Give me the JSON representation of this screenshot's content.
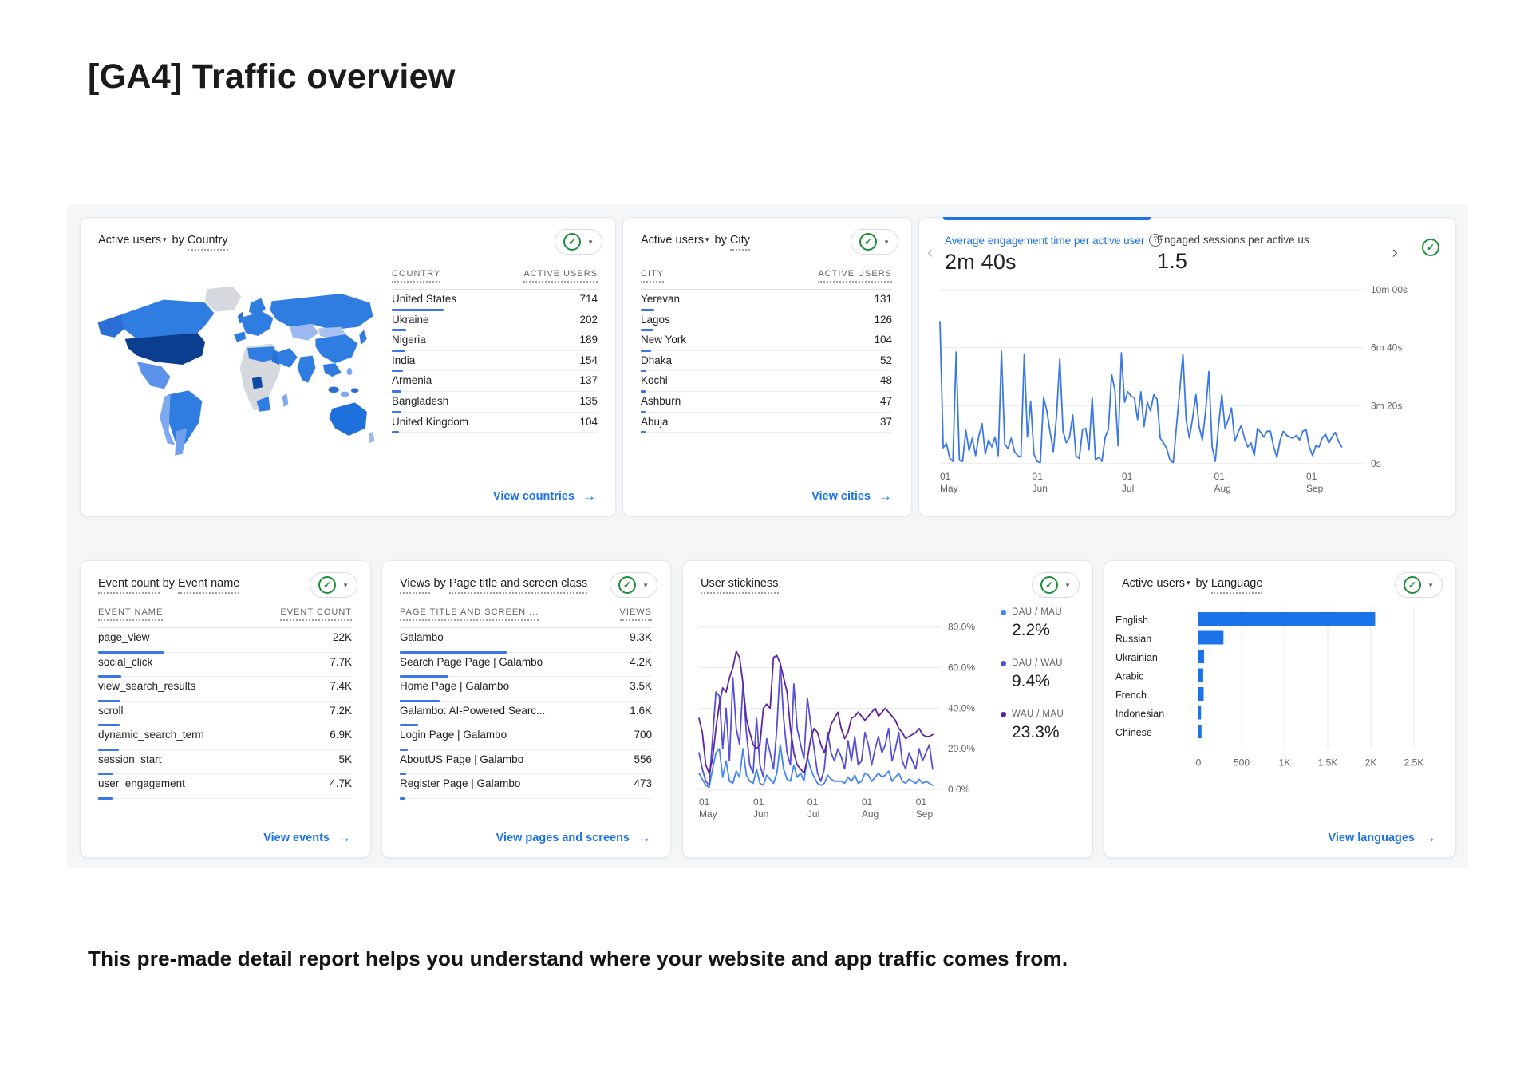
{
  "page": {
    "title": "[GA4] Traffic overview",
    "footer": "This pre-made detail report helps you understand where your website and app traffic comes from."
  },
  "icons": {
    "data_quality": "✓",
    "dropdown_caret": "▼",
    "metric_caret": "▾",
    "help": "?",
    "chevron_left": "‹",
    "chevron_right": "›",
    "arrow_right": "→"
  },
  "theme": {
    "accent_blue": "#1a73e8",
    "link_blue": "#1a73e8",
    "check_green": "#1e8e3e",
    "text_dark": "#202124",
    "text_gray": "#5f6368",
    "map_dark": "#0b3e8f",
    "map_mid": "#2f7de1",
    "map_light": "#8ab0ef",
    "map_gray": "#d5d9dd"
  },
  "cards": {
    "country": {
      "metric": "Active users",
      "joiner": "by",
      "dimension": "Country",
      "columns": [
        "COUNTRY",
        "ACTIVE USERS"
      ],
      "rows": [
        {
          "label": "United States",
          "value": "714",
          "num": 714
        },
        {
          "label": "Ukraine",
          "value": "202",
          "num": 202
        },
        {
          "label": "Nigeria",
          "value": "189",
          "num": 189
        },
        {
          "label": "India",
          "value": "154",
          "num": 154
        },
        {
          "label": "Armenia",
          "value": "137",
          "num": 137
        },
        {
          "label": "Bangladesh",
          "value": "135",
          "num": 135
        },
        {
          "label": "United Kingdom",
          "value": "104",
          "num": 104
        }
      ],
      "link": "View countries"
    },
    "city": {
      "metric": "Active users",
      "joiner": "by",
      "dimension": "City",
      "columns": [
        "CITY",
        "ACTIVE USERS"
      ],
      "rows": [
        {
          "label": "Yerevan",
          "value": "131",
          "num": 131
        },
        {
          "label": "Lagos",
          "value": "126",
          "num": 126
        },
        {
          "label": "New York",
          "value": "104",
          "num": 104
        },
        {
          "label": "Dhaka",
          "value": "52",
          "num": 52
        },
        {
          "label": "Kochi",
          "value": "48",
          "num": 48
        },
        {
          "label": "Ashburn",
          "value": "47",
          "num": 47
        },
        {
          "label": "Abuja",
          "value": "37",
          "num": 37
        }
      ],
      "link": "View cities"
    },
    "engagement": {
      "tabs": [
        {
          "label": "Average engagement time per active user",
          "value": "2m 40s"
        },
        {
          "label": "Engaged sessions per active us",
          "value": "1.5"
        }
      ]
    },
    "events": {
      "title_a": "Event count",
      "joiner": "by",
      "title_b": "Event name",
      "columns": [
        "EVENT NAME",
        "EVENT COUNT"
      ],
      "rows": [
        {
          "label": "page_view",
          "value": "22K",
          "num": 22000
        },
        {
          "label": "social_click",
          "value": "7.7K",
          "num": 7700
        },
        {
          "label": "view_search_results",
          "value": "7.4K",
          "num": 7400
        },
        {
          "label": "scroll",
          "value": "7.2K",
          "num": 7200
        },
        {
          "label": "dynamic_search_term",
          "value": "6.9K",
          "num": 6900
        },
        {
          "label": "session_start",
          "value": "5K",
          "num": 5000
        },
        {
          "label": "user_engagement",
          "value": "4.7K",
          "num": 4700
        }
      ],
      "link": "View events"
    },
    "views": {
      "title_a": "Views",
      "joiner": "by",
      "title_b": "Page title and screen class",
      "columns": [
        "PAGE TITLE AND SCREEN ...",
        "VIEWS"
      ],
      "rows": [
        {
          "label": "Galambo",
          "value": "9.3K",
          "num": 9300
        },
        {
          "label": "Search Page Page | Galambo",
          "value": "4.2K",
          "num": 4200
        },
        {
          "label": "Home Page | Galambo",
          "value": "3.5K",
          "num": 3500
        },
        {
          "label": "Galambo: AI-Powered Searc...",
          "value": "1.6K",
          "num": 1600
        },
        {
          "label": "Login Page | Galambo",
          "value": "700",
          "num": 700
        },
        {
          "label": "AboutUS Page | Galambo",
          "value": "556",
          "num": 556
        },
        {
          "label": "Register Page | Galambo",
          "value": "473",
          "num": 473
        }
      ],
      "link": "View pages and screens"
    },
    "stickiness": {
      "title": "User stickiness",
      "legend": [
        {
          "name": "DAU / MAU",
          "value": "2.2%",
          "color": "#4285f4"
        },
        {
          "name": "DAU / WAU",
          "value": "9.4%",
          "color": "#564fd8"
        },
        {
          "name": "WAU / MAU",
          "value": "23.3%",
          "color": "#5f249f"
        }
      ]
    },
    "language": {
      "metric": "Active users",
      "joiner": "by",
      "dimension": "Language",
      "link": "View languages"
    }
  },
  "chart_data": [
    {
      "type": "line",
      "title": "Average engagement time per active user",
      "ylabel": "engagement time",
      "ylim": [
        0,
        600
      ],
      "yticks": [
        {
          "v": 600,
          "label": "10m 00s"
        },
        {
          "v": 400,
          "label": "6m 40s"
        },
        {
          "v": 200,
          "label": "3m 20s"
        },
        {
          "v": 0,
          "label": "0s"
        }
      ],
      "xticks": [
        {
          "f": 0.0,
          "l1": "01",
          "l2": "May"
        },
        {
          "f": 0.218,
          "l1": "01",
          "l2": "Jun"
        },
        {
          "f": 0.43,
          "l1": "01",
          "l2": "Jul"
        },
        {
          "f": 0.648,
          "l1": "01",
          "l2": "Aug"
        },
        {
          "f": 0.866,
          "l1": "01",
          "l2": "Sep"
        }
      ],
      "series": [
        {
          "name": "Average engagement time (seconds)",
          "color": "#3b78e7",
          "values": [
            490,
            55,
            70,
            20,
            8,
            385,
            12,
            8,
            115,
            45,
            88,
            28,
            95,
            138,
            33,
            82,
            58,
            92,
            28,
            388,
            68,
            52,
            88,
            42,
            28,
            22,
            378,
            92,
            215,
            33,
            8,
            4,
            228,
            182,
            108,
            42,
            168,
            362,
            112,
            72,
            92,
            168,
            28,
            18,
            118,
            122,
            48,
            228,
            12,
            22,
            8,
            92,
            118,
            308,
            252,
            62,
            382,
            212,
            248,
            232,
            228,
            152,
            248,
            128,
            212,
            182,
            238,
            222,
            88,
            72,
            52,
            12,
            4,
            128,
            252,
            378,
            148,
            88,
            158,
            238,
            128,
            82,
            182,
            318,
            58,
            8,
            132,
            238,
            122,
            152,
            192,
            78,
            108,
            132,
            88,
            58,
            72,
            28,
            122,
            108,
            92,
            112,
            112,
            58,
            22,
            82,
            112,
            98,
            92,
            88,
            98,
            82,
            112,
            118,
            58,
            28,
            62,
            58,
            88,
            102,
            72,
            92,
            108,
            78,
            58
          ]
        }
      ]
    },
    {
      "type": "line",
      "title": "User stickiness",
      "ylabel": "percent",
      "ylim": [
        0,
        85
      ],
      "yticks": [
        {
          "v": 80,
          "label": "80.0%"
        },
        {
          "v": 60,
          "label": "60.0%"
        },
        {
          "v": 40,
          "label": "40.0%"
        },
        {
          "v": 20,
          "label": "20.0%"
        },
        {
          "v": 0,
          "label": "0.0%"
        }
      ],
      "xticks": [
        {
          "f": 0.0,
          "l1": "01",
          "l2": "May"
        },
        {
          "f": 0.225,
          "l1": "01",
          "l2": "Jun"
        },
        {
          "f": 0.45,
          "l1": "01",
          "l2": "Jul"
        },
        {
          "f": 0.675,
          "l1": "01",
          "l2": "Aug"
        },
        {
          "f": 0.9,
          "l1": "01",
          "l2": "Sep"
        }
      ],
      "series": [
        {
          "name": "DAU / MAU",
          "color": "#4285f4",
          "values": [
            8,
            5,
            2,
            1,
            10,
            18,
            20,
            6,
            14,
            4,
            3,
            9,
            6,
            20,
            7,
            4,
            3,
            10,
            3,
            2,
            7,
            5,
            3,
            8,
            22,
            10,
            5,
            4,
            12,
            6,
            8,
            4,
            16,
            10,
            6,
            3,
            2,
            3,
            7,
            5,
            4,
            4,
            4,
            3,
            6,
            4,
            7,
            3,
            4,
            8,
            7,
            4,
            6,
            8,
            6,
            7,
            9,
            4,
            6,
            8,
            4,
            3,
            5,
            4,
            3,
            5,
            3,
            4,
            3,
            2
          ]
        },
        {
          "name": "DAU / WAU",
          "color": "#564fd8",
          "values": [
            18,
            10,
            4,
            2,
            25,
            48,
            46,
            20,
            40,
            14,
            55,
            30,
            22,
            52,
            28,
            12,
            8,
            35,
            12,
            6,
            25,
            18,
            10,
            30,
            62,
            35,
            18,
            12,
            52,
            30,
            22,
            15,
            45,
            32,
            20,
            8,
            4,
            10,
            28,
            18,
            14,
            20,
            16,
            10,
            24,
            14,
            26,
            12,
            14,
            28,
            22,
            12,
            20,
            26,
            18,
            22,
            30,
            14,
            20,
            28,
            14,
            10,
            18,
            14,
            10,
            20,
            14,
            18,
            22,
            10
          ]
        },
        {
          "name": "WAU / MAU",
          "color": "#5f249f",
          "values": [
            35,
            28,
            12,
            8,
            15,
            30,
            42,
            50,
            48,
            55,
            60,
            68,
            65,
            52,
            35,
            28,
            22,
            20,
            22,
            40,
            42,
            40,
            65,
            66,
            62,
            55,
            48,
            30,
            18,
            12,
            10,
            8,
            15,
            25,
            30,
            28,
            22,
            18,
            25,
            32,
            35,
            38,
            30,
            25,
            28,
            35,
            36,
            38,
            36,
            34,
            36,
            38,
            40,
            36,
            38,
            40,
            38,
            36,
            34,
            30,
            28,
            25,
            26,
            27,
            28,
            30,
            27,
            26,
            26,
            27
          ]
        }
      ]
    },
    {
      "type": "bar",
      "orientation": "horizontal",
      "title": "Active users by Language",
      "categories": [
        "English",
        "Russian",
        "Ukrainian",
        "Arabic",
        "French",
        "Indonesian",
        "Chinese"
      ],
      "values": [
        2050,
        290,
        65,
        55,
        60,
        30,
        35
      ],
      "color": "#1a73e8",
      "xlim": [
        0,
        2500
      ],
      "xticks": [
        {
          "v": 0,
          "label": "0"
        },
        {
          "v": 500,
          "label": "500"
        },
        {
          "v": 1000,
          "label": "1K"
        },
        {
          "v": 1500,
          "label": "1.5K"
        },
        {
          "v": 2000,
          "label": "2K"
        },
        {
          "v": 2500,
          "label": "2.5K"
        }
      ]
    }
  ]
}
